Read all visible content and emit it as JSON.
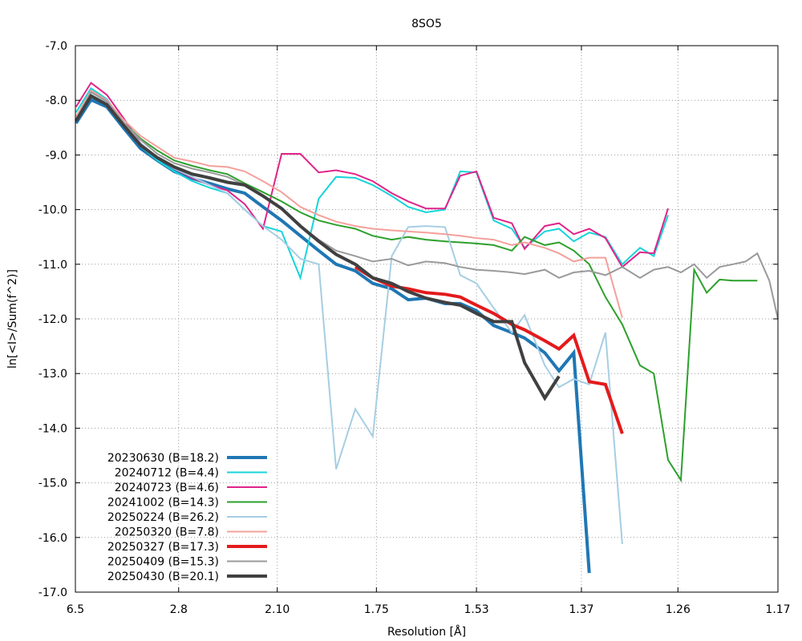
{
  "chart_data": {
    "type": "line",
    "title": "8SO5",
    "xlabel": "Resolution [Å]",
    "ylabel": "ln[<I>/Sum(f^2)]",
    "x_scale": "inverse-square resolution",
    "x_ticks": [
      "6.5",
      "2.8",
      "2.10",
      "1.75",
      "1.53",
      "1.37",
      "1.26",
      "1.17"
    ],
    "xlim": [
      6.5,
      1.17
    ],
    "y_ticks": [
      "-7.0",
      "-8.0",
      "-9.0",
      "-10.0",
      "-11.0",
      "-12.0",
      "-13.0",
      "-14.0",
      "-15.0",
      "-16.0",
      "-17.0"
    ],
    "ylim": [
      -17.0,
      -7.0
    ],
    "grid": true,
    "legend_position": "bottom-left",
    "series": [
      {
        "name": "20230630 (B=18.2)",
        "color": "#1f77b4",
        "width": 4,
        "x": [
          6.41,
          5.04,
          4.25,
          3.73,
          3.35,
          3.07,
          2.85,
          2.66,
          2.51,
          2.38,
          2.27,
          2.17,
          2.08,
          2.0,
          1.93,
          1.87,
          1.81,
          1.76,
          1.71,
          1.67,
          1.63,
          1.59,
          1.56,
          1.53,
          1.5,
          1.47,
          1.45,
          1.42,
          1.4,
          1.38,
          1.36
        ],
        "y": [
          -8.42,
          -7.99,
          -8.12,
          -8.5,
          -8.88,
          -9.1,
          -9.3,
          -9.43,
          -9.52,
          -9.62,
          -9.7,
          -9.95,
          -10.2,
          -10.48,
          -10.75,
          -11.0,
          -11.12,
          -11.35,
          -11.45,
          -11.65,
          -11.62,
          -11.72,
          -11.72,
          -11.85,
          -12.12,
          -12.25,
          -12.35,
          -12.62,
          -12.95,
          -12.62,
          -16.65
        ]
      },
      {
        "name": "20240712 (B=4.4)",
        "color": "#17d4d9",
        "width": 2,
        "x": [
          6.41,
          5.04,
          4.25,
          3.73,
          3.35,
          3.07,
          2.85,
          2.66,
          2.51,
          2.38,
          2.27,
          2.17,
          2.08,
          2.0,
          1.93,
          1.87,
          1.81,
          1.76,
          1.71,
          1.67,
          1.63,
          1.59,
          1.56,
          1.53,
          1.5,
          1.47,
          1.45,
          1.42,
          1.4,
          1.38,
          1.36,
          1.34,
          1.32,
          1.3,
          1.285,
          1.27
        ],
        "y": [
          -8.22,
          -7.78,
          -7.98,
          -8.4,
          -8.84,
          -9.1,
          -9.3,
          -9.48,
          -9.6,
          -9.7,
          -10.0,
          -10.3,
          -10.4,
          -11.25,
          -9.8,
          -9.4,
          -9.42,
          -9.55,
          -9.75,
          -9.95,
          -10.05,
          -10.0,
          -9.3,
          -9.32,
          -10.2,
          -10.35,
          -10.7,
          -10.4,
          -10.35,
          -10.58,
          -10.42,
          -10.5,
          -11.0,
          -10.7,
          -10.85,
          -10.1
        ]
      },
      {
        "name": "20240723 (B=4.6)",
        "color": "#e0248a",
        "width": 2,
        "x": [
          6.41,
          5.04,
          4.25,
          3.73,
          3.35,
          3.07,
          2.85,
          2.66,
          2.51,
          2.38,
          2.27,
          2.17,
          2.08,
          2.0,
          1.93,
          1.87,
          1.81,
          1.76,
          1.71,
          1.67,
          1.63,
          1.59,
          1.56,
          1.53,
          1.5,
          1.47,
          1.45,
          1.42,
          1.4,
          1.38,
          1.36,
          1.34,
          1.32,
          1.3,
          1.285,
          1.27
        ],
        "y": [
          -8.12,
          -7.68,
          -7.9,
          -8.32,
          -8.78,
          -9.05,
          -9.25,
          -9.42,
          -9.55,
          -9.65,
          -9.9,
          -10.35,
          -8.98,
          -8.98,
          -9.32,
          -9.28,
          -9.35,
          -9.48,
          -9.7,
          -9.85,
          -9.98,
          -9.98,
          -9.38,
          -9.3,
          -10.15,
          -10.25,
          -10.72,
          -10.3,
          -10.25,
          -10.45,
          -10.35,
          -10.52,
          -11.05,
          -10.78,
          -10.8,
          -9.98
        ]
      },
      {
        "name": "20241002 (B=14.3)",
        "color": "#2ca02c",
        "width": 2,
        "x": [
          6.41,
          5.04,
          4.25,
          3.73,
          3.35,
          3.07,
          2.85,
          2.66,
          2.51,
          2.38,
          2.27,
          2.17,
          2.08,
          2.0,
          1.93,
          1.87,
          1.81,
          1.76,
          1.71,
          1.67,
          1.63,
          1.59,
          1.56,
          1.53,
          1.5,
          1.47,
          1.45,
          1.42,
          1.4,
          1.38,
          1.36,
          1.34,
          1.32,
          1.3,
          1.285,
          1.27,
          1.257,
          1.244,
          1.232,
          1.22,
          1.208,
          1.197,
          1.187
        ],
        "y": [
          -8.35,
          -7.85,
          -8.02,
          -8.4,
          -8.7,
          -8.92,
          -9.1,
          -9.2,
          -9.28,
          -9.35,
          -9.52,
          -9.68,
          -9.85,
          -10.05,
          -10.2,
          -10.28,
          -10.35,
          -10.48,
          -10.55,
          -10.5,
          -10.55,
          -10.58,
          -10.6,
          -10.62,
          -10.65,
          -10.75,
          -10.5,
          -10.65,
          -10.6,
          -10.75,
          -11.0,
          -11.6,
          -12.1,
          -12.85,
          -13.0,
          -14.58,
          -14.95,
          -11.1,
          -11.52,
          -11.28,
          -11.3,
          -11.3,
          -11.3
        ]
      },
      {
        "name": "20250224 (B=26.2)",
        "color": "#a6cee3",
        "width": 2,
        "x": [
          6.41,
          5.04,
          4.25,
          3.73,
          3.35,
          3.07,
          2.85,
          2.66,
          2.51,
          2.38,
          2.27,
          2.17,
          2.08,
          2.0,
          1.93,
          1.87,
          1.81,
          1.76,
          1.71,
          1.67,
          1.63,
          1.59,
          1.56,
          1.53,
          1.5,
          1.47,
          1.45,
          1.42,
          1.4,
          1.38,
          1.36,
          1.34,
          1.32
        ],
        "y": [
          -8.38,
          -7.9,
          -8.05,
          -8.42,
          -8.78,
          -9.05,
          -9.25,
          -9.4,
          -9.55,
          -9.7,
          -10.0,
          -10.3,
          -10.55,
          -10.9,
          -11.0,
          -14.75,
          -13.65,
          -14.15,
          -10.85,
          -10.32,
          -10.3,
          -10.32,
          -11.2,
          -11.35,
          -11.8,
          -12.25,
          -11.93,
          -12.85,
          -13.25,
          -13.1,
          -13.2,
          -12.25,
          -16.12
        ]
      },
      {
        "name": "20250320 (B=7.8)",
        "color": "#f4a09b",
        "width": 2,
        "x": [
          6.41,
          5.04,
          4.25,
          3.73,
          3.35,
          3.07,
          2.85,
          2.66,
          2.51,
          2.38,
          2.27,
          2.17,
          2.08,
          2.0,
          1.93,
          1.87,
          1.81,
          1.76,
          1.71,
          1.67,
          1.63,
          1.59,
          1.56,
          1.53,
          1.5,
          1.47,
          1.45,
          1.42,
          1.4,
          1.38,
          1.36,
          1.34,
          1.32
        ],
        "y": [
          -8.3,
          -7.82,
          -8.0,
          -8.35,
          -8.65,
          -8.85,
          -9.05,
          -9.12,
          -9.2,
          -9.22,
          -9.3,
          -9.48,
          -9.68,
          -9.95,
          -10.1,
          -10.22,
          -10.3,
          -10.35,
          -10.38,
          -10.4,
          -10.42,
          -10.45,
          -10.48,
          -10.52,
          -10.55,
          -10.65,
          -10.6,
          -10.7,
          -10.8,
          -10.95,
          -10.88,
          -10.88,
          -11.98
        ]
      },
      {
        "name": "20250327 (B=17.3)",
        "color": "#e31a1c",
        "width": 4,
        "x": [
          1.81,
          1.76,
          1.71,
          1.67,
          1.63,
          1.59,
          1.56,
          1.53,
          1.5,
          1.47,
          1.45,
          1.42,
          1.4,
          1.38,
          1.36,
          1.34,
          1.32
        ],
        "y": [
          -11.05,
          -11.25,
          -11.4,
          -11.45,
          -11.52,
          -11.55,
          -11.6,
          -11.75,
          -11.9,
          -12.1,
          -12.2,
          -12.4,
          -12.55,
          -12.3,
          -13.15,
          -13.2,
          -14.1
        ]
      },
      {
        "name": "20250409 (B=15.3)",
        "color": "#9a9a9a",
        "width": 2,
        "x": [
          6.41,
          5.04,
          4.25,
          3.73,
          3.35,
          3.07,
          2.85,
          2.66,
          2.51,
          2.38,
          2.27,
          2.17,
          2.08,
          2.0,
          1.93,
          1.87,
          1.81,
          1.76,
          1.71,
          1.67,
          1.63,
          1.59,
          1.56,
          1.53,
          1.5,
          1.47,
          1.45,
          1.42,
          1.4,
          1.38,
          1.36,
          1.34,
          1.32,
          1.3,
          1.285,
          1.27,
          1.257,
          1.244,
          1.232,
          1.22,
          1.208,
          1.197,
          1.187,
          1.177,
          1.17
        ],
        "y": [
          -8.35,
          -7.85,
          -8.02,
          -8.4,
          -8.72,
          -8.98,
          -9.15,
          -9.25,
          -9.32,
          -9.4,
          -9.55,
          -9.75,
          -10.0,
          -10.3,
          -10.55,
          -10.75,
          -10.85,
          -10.95,
          -10.9,
          -11.02,
          -10.95,
          -10.98,
          -11.05,
          -11.1,
          -11.12,
          -11.15,
          -11.18,
          -11.1,
          -11.25,
          -11.15,
          -11.12,
          -11.2,
          -11.05,
          -11.25,
          -11.1,
          -11.05,
          -11.15,
          -11.0,
          -11.25,
          -11.05,
          -11.0,
          -10.95,
          -10.8,
          -11.3,
          -12.0
        ]
      },
      {
        "name": "20250430 (B=20.1)",
        "color": "#404040",
        "width": 4,
        "x": [
          6.41,
          5.04,
          4.25,
          3.73,
          3.35,
          3.07,
          2.85,
          2.66,
          2.51,
          2.38,
          2.27,
          2.17,
          2.08,
          2.0,
          1.93,
          1.87,
          1.81,
          1.76,
          1.71,
          1.67,
          1.63,
          1.59,
          1.56,
          1.53,
          1.5,
          1.47,
          1.45,
          1.42,
          1.4
        ],
        "y": [
          -8.38,
          -7.92,
          -8.08,
          -8.45,
          -8.82,
          -9.05,
          -9.22,
          -9.35,
          -9.42,
          -9.5,
          -9.55,
          -9.75,
          -9.98,
          -10.3,
          -10.58,
          -10.82,
          -11.0,
          -11.25,
          -11.35,
          -11.5,
          -11.62,
          -11.7,
          -11.75,
          -11.9,
          -12.05,
          -12.05,
          -12.8,
          -13.45,
          -13.05
        ]
      }
    ]
  }
}
